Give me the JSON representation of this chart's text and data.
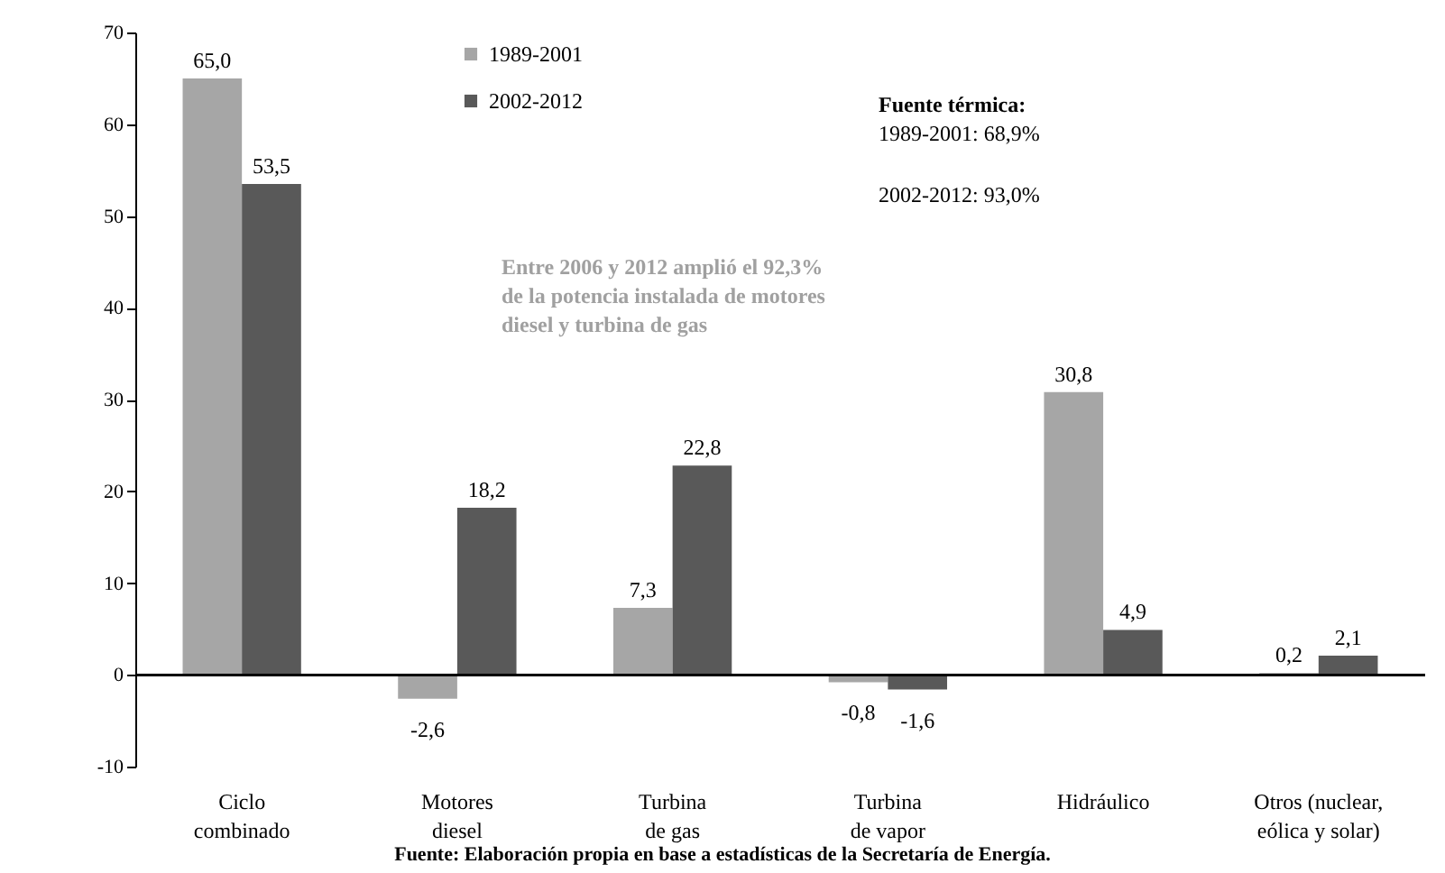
{
  "chart_data": {
    "type": "bar",
    "categories": [
      "Ciclo combinado",
      "Motores diesel",
      "Turbina de gas",
      "Turbina de vapor",
      "Hidráulico",
      "Otros (nuclear, eólica y solar)"
    ],
    "series": [
      {
        "name": "1989-2001",
        "color": "#a6a6a6",
        "values": [
          65.0,
          -2.6,
          7.3,
          -0.8,
          30.8,
          0.2
        ],
        "value_labels": [
          "65,0",
          "-2,6",
          "7,3",
          "-0,8",
          "30,8",
          "0,2"
        ]
      },
      {
        "name": "2002-2012",
        "color": "#595959",
        "values": [
          53.5,
          18.2,
          22.8,
          -1.6,
          4.9,
          2.1
        ],
        "value_labels": [
          "53,5",
          "18,2",
          "22,8",
          "-1,6",
          "4,9",
          "2,1"
        ]
      }
    ],
    "ylim": [
      -10,
      70
    ],
    "yticks": [
      -10,
      0,
      10,
      20,
      30,
      40,
      50,
      60,
      70
    ],
    "grid": false,
    "legend": "top",
    "ref_lines": [
      {
        "axis": "y",
        "value": 0,
        "color": "#000000"
      }
    ],
    "annotations": [
      "Fuente térmica:",
      "1989-2001: 68,9%",
      "2002-2012: 93,0%",
      "Entre 2006 y 2012 amplió el 92,3% de la potencia instalada de motores diesel y turbina de gas",
      "Fuente: Elaboración propia en base a estadísticas de la Secretaría de Energía."
    ]
  }
}
